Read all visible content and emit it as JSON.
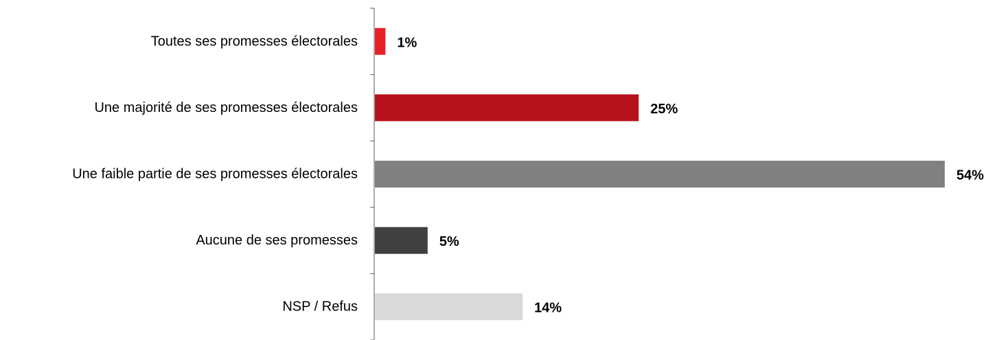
{
  "chart_data": {
    "type": "bar",
    "orientation": "horizontal",
    "categories": [
      "Toutes ses promesses électorales",
      "Une majorité de ses promesses électorales",
      "Une faible partie de ses promesses électorales",
      "Aucune de ses promesses",
      "NSP / Refus"
    ],
    "values": [
      1,
      25,
      54,
      5,
      14
    ],
    "value_labels": [
      "1%",
      "25%",
      "54%",
      "5%",
      "14%"
    ],
    "colors": [
      "#e8202a",
      "#b5121b",
      "#808080",
      "#404040",
      "#d9d9d9"
    ],
    "unit": "%",
    "xlim": [
      0,
      54
    ],
    "grid": false,
    "legend": "none"
  }
}
